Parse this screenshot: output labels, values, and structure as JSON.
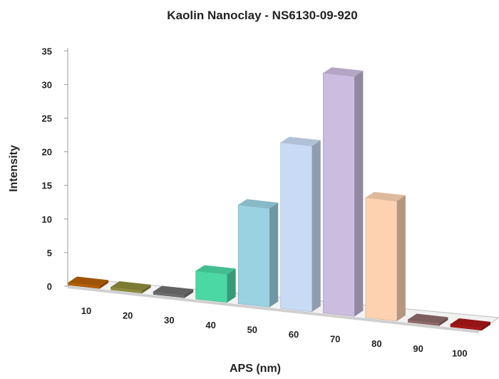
{
  "chart_data": {
    "type": "bar",
    "title": "Kaolin Nanoclay - NS6130-09-920",
    "xlabel": "APS (nm)",
    "ylabel": "Intensity",
    "ylim": [
      0,
      35
    ],
    "yticks": [
      "0",
      "5",
      "10",
      "15",
      "20",
      "25",
      "30",
      "35"
    ],
    "categories": [
      "10",
      "20",
      "30",
      "40",
      "50",
      "60",
      "70",
      "80",
      "90",
      "100"
    ],
    "values": [
      0,
      0,
      0,
      4,
      14,
      23.5,
      34,
      17,
      0,
      0
    ],
    "colors": [
      "#b45f06",
      "#8c8c3c",
      "#6e6e6e",
      "#4cd8a4",
      "#9ad2e2",
      "#c8daf4",
      "#cbbde0",
      "#fcd2b0",
      "#8e6a6a",
      "#a81818"
    ],
    "grid": false,
    "legend": "none",
    "style": "3d"
  }
}
